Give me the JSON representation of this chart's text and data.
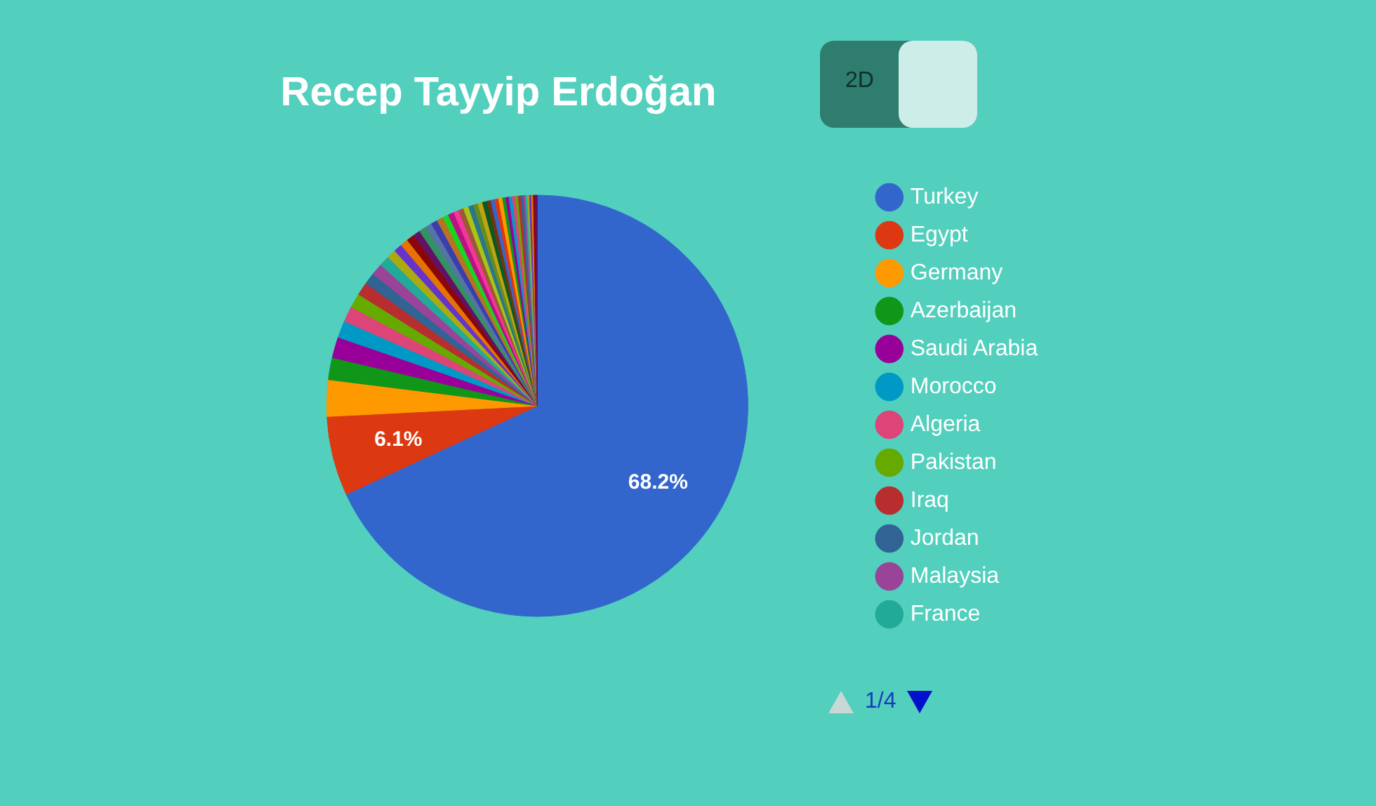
{
  "chart_data": {
    "type": "pie",
    "title": "Recep Tayyip Erdoğan",
    "categories": [
      "Turkey",
      "Egypt",
      "Germany",
      "Azerbaijan",
      "Saudi Arabia",
      "Morocco",
      "Algeria",
      "Pakistan",
      "Iraq",
      "Jordan",
      "Malaysia",
      "France",
      null,
      null,
      null,
      null,
      null,
      null,
      null,
      null,
      null,
      null,
      null,
      null,
      null,
      null,
      null,
      null,
      null,
      null,
      null,
      null,
      null,
      null,
      null,
      null,
      null,
      null,
      null,
      null,
      null,
      null,
      null,
      null,
      null,
      null,
      null,
      null
    ],
    "values": [
      68.2,
      6.1,
      2.8,
      1.7,
      1.6,
      1.3,
      1.2,
      1.1,
      1.0,
      0.9,
      0.9,
      0.8,
      0.7,
      0.65,
      0.6,
      0.6,
      0.55,
      0.55,
      0.5,
      0.5,
      0.5,
      0.45,
      0.45,
      0.4,
      0.4,
      0.4,
      0.4,
      0.35,
      0.35,
      0.35,
      0.3,
      0.3,
      0.3,
      0.3,
      0.25,
      0.25,
      0.25,
      0.25,
      0.2,
      0.2,
      0.2,
      0.15,
      0.15,
      0.15,
      0.15,
      0.15,
      0.15,
      0.15
    ],
    "colors": [
      "#3366cc",
      "#dc3912",
      "#ff9900",
      "#109618",
      "#990099",
      "#0099c6",
      "#dd4477",
      "#66aa00",
      "#b82e2e",
      "#316395",
      "#994499",
      "#22aa99",
      "#aaaa11",
      "#6633cc",
      "#e67300",
      "#8b0707",
      "#651067",
      "#329262",
      "#5574a6",
      "#3b3eac",
      "#b77322",
      "#16d620",
      "#b91383",
      "#f4359e",
      "#9c5935",
      "#a9c413",
      "#2a778d",
      "#668d1c",
      "#bea413",
      "#0c5922",
      "#743411",
      "#3366cc",
      "#dc3912",
      "#ff9900",
      "#109618",
      "#990099",
      "#0099c6",
      "#dd4477",
      "#66aa00",
      "#b82e2e",
      "#316395",
      "#994499",
      "#22aa99",
      "#aaaa11",
      "#6633cc",
      "#e67300",
      "#8b0707",
      "#651067"
    ],
    "value_labels": [
      "68.2%",
      "6.1%",
      null,
      null,
      null,
      null,
      null,
      null,
      null,
      null,
      null,
      null,
      null,
      null,
      null,
      null,
      null,
      null,
      null,
      null,
      null,
      null,
      null,
      null,
      null,
      null,
      null,
      null,
      null,
      null,
      null,
      null,
      null,
      null,
      null,
      null,
      null,
      null,
      null,
      null,
      null,
      null,
      null,
      null,
      null,
      null,
      null,
      null
    ],
    "legend": "right",
    "annotations": [
      "2D",
      "1/4"
    ]
  }
}
